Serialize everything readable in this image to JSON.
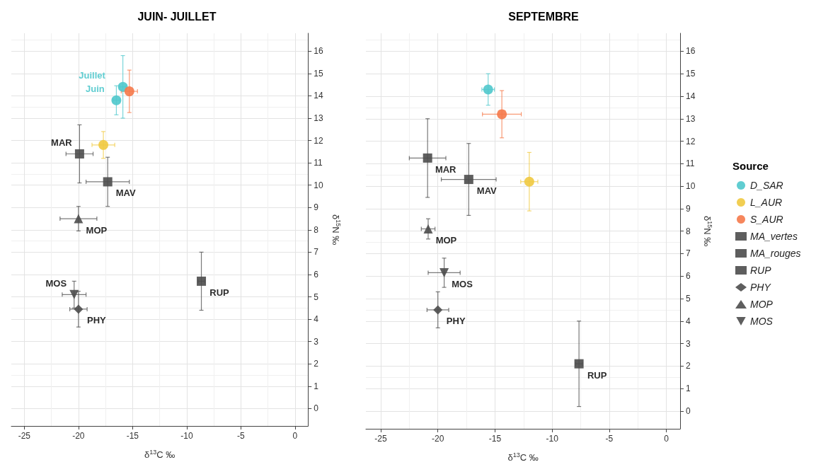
{
  "chart_data": [
    {
      "type": "scatter",
      "title": "JUIN- JUILLET",
      "xlabel": "δ$^{13}$C ‰",
      "ylabel": "δ$^{15}$N ‰",
      "xlim": [
        -26.2,
        1.2
      ],
      "ylim": [
        -0.78,
        16.8
      ],
      "xticks": [
        -25,
        -20,
        -15,
        -10,
        -5,
        0
      ],
      "yticks": [
        0,
        1,
        2,
        3,
        4,
        5,
        6,
        7,
        8,
        9,
        10,
        11,
        12,
        13,
        14,
        15,
        16
      ],
      "grid": true,
      "legend": false,
      "series": [
        {
          "color": "#4fc8cc",
          "marker": "circle",
          "x": [
            -16.5,
            -15.9
          ],
          "values": [
            13.8,
            14.4
          ],
          "errors": [
            0.65,
            1.4
          ],
          "xerrors": [
            0.3,
            0.3
          ],
          "value_labels": [
            "Juin",
            "Juillet"
          ]
        },
        {
          "color": "#f0c940",
          "marker": "circle",
          "x": [
            -17.7
          ],
          "values": [
            11.8
          ],
          "errors": [
            0.6
          ],
          "xerrors": [
            1.05
          ]
        },
        {
          "color": "#f5794a",
          "marker": "circle",
          "x": [
            -15.3
          ],
          "values": [
            14.2
          ],
          "errors": [
            0.95
          ],
          "xerrors": [
            0.75
          ]
        },
        {
          "color": "#4d4d4d",
          "marker": "square",
          "x": [
            -17.3
          ],
          "values": [
            10.15
          ],
          "errors": [
            1.1
          ],
          "xerrors": [
            2.0
          ],
          "value_labels": [
            "MAV"
          ]
        },
        {
          "color": "#4d4d4d",
          "marker": "square",
          "x": [
            -19.9
          ],
          "values": [
            11.4
          ],
          "errors": [
            1.3
          ],
          "xerrors": [
            1.25
          ],
          "value_labels": [
            "MAR"
          ]
        },
        {
          "color": "#4d4d4d",
          "marker": "square",
          "x": [
            -8.65
          ],
          "values": [
            5.7
          ],
          "errors": [
            1.3
          ],
          "xerrors": [
            0.3
          ],
          "value_labels": [
            "RUP"
          ]
        },
        {
          "color": "#4d4d4d",
          "marker": "diamond",
          "x": [
            -20.0
          ],
          "values": [
            4.45
          ],
          "errors": [
            0.8
          ],
          "xerrors": [
            0.8
          ],
          "value_labels": [
            "PHY"
          ]
        },
        {
          "color": "#4d4d4d",
          "marker": "triangle",
          "x": [
            -20.0
          ],
          "values": [
            8.5
          ],
          "errors": [
            0.55
          ],
          "xerrors": [
            1.7
          ],
          "value_labels": [
            "MOP"
          ]
        },
        {
          "color": "#4d4d4d",
          "marker": "triangle-down",
          "x": [
            -20.4
          ],
          "values": [
            5.1
          ],
          "errors": [
            0.6
          ],
          "xerrors": [
            1.1
          ],
          "value_labels": [
            "MOS"
          ]
        }
      ]
    },
    {
      "type": "scatter",
      "title": "SEPTEMBRE",
      "xlabel": "δ$^{13}$C ‰",
      "ylabel": "δ$^{15}$N ‰",
      "xlim": [
        -26.3,
        1.2
      ],
      "ylim": [
        -0.79,
        16.8
      ],
      "xticks": [
        -25,
        -20,
        -15,
        -10,
        -5,
        0
      ],
      "yticks": [
        0,
        1,
        2,
        3,
        4,
        5,
        6,
        7,
        8,
        9,
        10,
        11,
        12,
        13,
        14,
        15,
        16
      ],
      "grid": true,
      "legend": "right",
      "legend_title": "Source",
      "series": [
        {
          "name": "D_SAR",
          "color": "#4fc8cc",
          "marker": "circle",
          "x": [
            -15.6
          ],
          "values": [
            14.3
          ],
          "errors": [
            0.7
          ],
          "xerrors": [
            0.55
          ]
        },
        {
          "name": "L_AUR",
          "color": "#f0c940",
          "marker": "circle",
          "x": [
            -12.0
          ],
          "values": [
            10.2
          ],
          "errors": [
            1.3
          ],
          "xerrors": [
            0.75
          ]
        },
        {
          "name": "S_AUR",
          "color": "#f5794a",
          "marker": "circle",
          "x": [
            -14.4
          ],
          "values": [
            13.2
          ],
          "errors": [
            1.05
          ],
          "xerrors": [
            1.7
          ]
        },
        {
          "name": "MA_vertes",
          "color": "#4d4d4d",
          "marker": "square",
          "x": [
            -17.3
          ],
          "values": [
            10.3
          ],
          "errors": [
            1.6
          ],
          "xerrors": [
            2.4
          ],
          "value_labels": [
            "MAV"
          ]
        },
        {
          "name": "MA_rouges",
          "color": "#4d4d4d",
          "marker": "square",
          "x": [
            -20.9
          ],
          "values": [
            11.25
          ],
          "errors": [
            1.75
          ],
          "xerrors": [
            1.6
          ],
          "value_labels": [
            "MAR"
          ]
        },
        {
          "name": "RUP",
          "color": "#4d4d4d",
          "marker": "square",
          "x": [
            -7.65
          ],
          "values": [
            2.1
          ],
          "errors": [
            1.9
          ],
          "xerrors": [
            0.3
          ],
          "value_labels": [
            "RUP"
          ]
        },
        {
          "name": "PHY",
          "color": "#4d4d4d",
          "marker": "diamond",
          "x": [
            -20.0
          ],
          "values": [
            4.5
          ],
          "errors": [
            0.8
          ],
          "xerrors": [
            0.95
          ],
          "value_labels": [
            "PHY"
          ]
        },
        {
          "name": "MOP",
          "color": "#4d4d4d",
          "marker": "triangle",
          "x": [
            -20.85
          ],
          "values": [
            8.1
          ],
          "errors": [
            0.45
          ],
          "xerrors": [
            0.6
          ],
          "value_labels": [
            "MOP"
          ]
        },
        {
          "name": "MOS",
          "color": "#4d4d4d",
          "marker": "triangle-down",
          "x": [
            -19.45
          ],
          "values": [
            6.15
          ],
          "errors": [
            0.65
          ],
          "xerrors": [
            1.4
          ],
          "value_labels": [
            "MOS"
          ]
        }
      ]
    }
  ]
}
